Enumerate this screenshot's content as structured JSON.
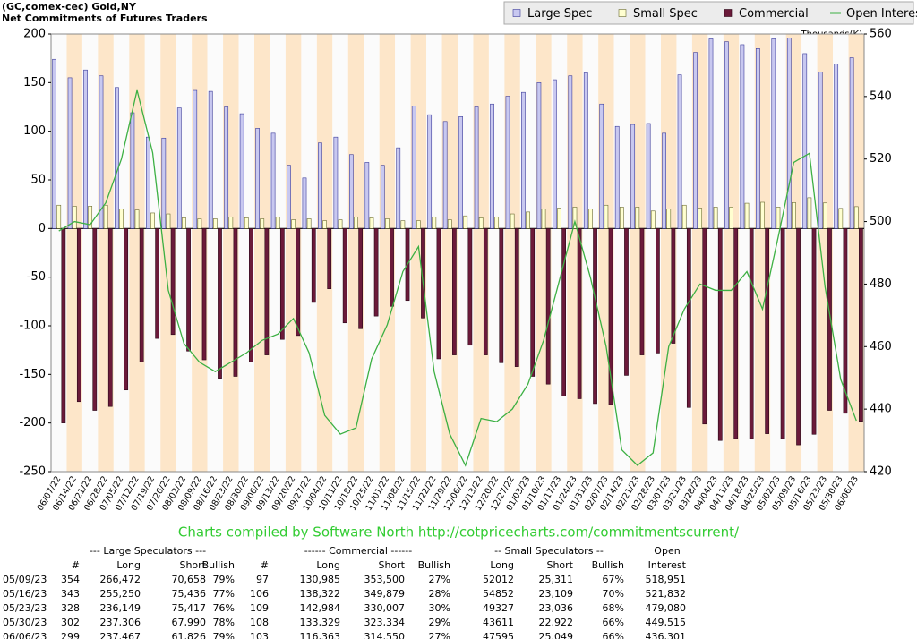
{
  "chart_data": {
    "type": "bar",
    "title": "(GC,comex-cec) Gold,NY",
    "subtitle": "Net Commitments of Futures Traders",
    "y2label": "Thousands(K)",
    "legend": "top-right",
    "grid": false,
    "categories": [
      "06/07/22",
      "06/14/22",
      "06/21/22",
      "06/28/22",
      "07/05/22",
      "07/12/22",
      "07/19/22",
      "07/26/22",
      "08/02/22",
      "08/09/22",
      "08/16/22",
      "08/23/22",
      "08/30/22",
      "09/06/22",
      "09/13/22",
      "09/20/22",
      "09/27/22",
      "10/04/22",
      "10/11/22",
      "10/18/22",
      "10/25/22",
      "11/01/22",
      "11/08/22",
      "11/15/22",
      "11/22/22",
      "11/29/22",
      "12/06/22",
      "12/13/22",
      "12/20/22",
      "12/27/22",
      "01/03/23",
      "01/10/23",
      "01/17/23",
      "01/24/23",
      "01/31/23",
      "02/07/23",
      "02/14/23",
      "02/21/23",
      "02/28/23",
      "03/07/23",
      "03/21/23",
      "03/28/23",
      "04/04/23",
      "04/11/23",
      "04/18/23",
      "04/25/23",
      "05/02/23",
      "05/09/23",
      "05/16/23",
      "05/23/23",
      "05/30/23",
      "06/06/23"
    ],
    "ylim": [
      -250,
      200
    ],
    "yticks": [
      -250,
      -200,
      -150,
      -100,
      -50,
      0,
      50,
      100,
      150,
      200
    ],
    "y2lim": [
      420,
      560
    ],
    "y2ticks": [
      420,
      440,
      460,
      480,
      500,
      520,
      540,
      560
    ],
    "series": [
      {
        "name": "Large Spec",
        "color": "#c8c8f0",
        "values": [
          174,
          155,
          163,
          157,
          145,
          119,
          94,
          93,
          124,
          142,
          141,
          125,
          118,
          103,
          98,
          65,
          52,
          88,
          94,
          76,
          68,
          65,
          83,
          126,
          117,
          110,
          115,
          125,
          128,
          136,
          140,
          150,
          153,
          157,
          160,
          128,
          105,
          107,
          108,
          98,
          158,
          181,
          195,
          192,
          189,
          185,
          195,
          195.8,
          179.8,
          160.7,
          169.3,
          175.6
        ]
      },
      {
        "name": "Small Spec",
        "color": "#ffffd0",
        "values": [
          24,
          23,
          23,
          24,
          20,
          19,
          16,
          15,
          11,
          10,
          10,
          12,
          11,
          10,
          12,
          9,
          10,
          8,
          9,
          12,
          11,
          10,
          8,
          8,
          12,
          9,
          13,
          11,
          12,
          15,
          17,
          20,
          21,
          22,
          20,
          24,
          22,
          22,
          18,
          20,
          24,
          21,
          22,
          22,
          26,
          27,
          22,
          26.7,
          31.7,
          26.3,
          20.7,
          22.5
        ]
      },
      {
        "name": "Commercial",
        "color": "#6b1a3a",
        "values": [
          -200,
          -178,
          -187,
          -183,
          -166,
          -137,
          -113,
          -109,
          -126,
          -135,
          -154,
          -152,
          -137,
          -130,
          -114,
          -110,
          -76,
          -62,
          -97,
          -103,
          -90,
          -80,
          -74,
          -92,
          -134,
          -130,
          -120,
          -130,
          -138,
          -142,
          -152,
          -160,
          -172,
          -175,
          -180,
          -181,
          -151,
          -130,
          -128,
          -118,
          -184,
          -201,
          -218,
          -216,
          -216,
          -211,
          -216,
          -222.5,
          -211.6,
          -187,
          -190,
          -198.2
        ]
      },
      {
        "name": "Open Interest",
        "color": "#3cb043",
        "type": "line",
        "axis": "y2",
        "values": [
          497,
          500,
          499,
          506,
          520,
          542,
          522,
          478,
          461,
          455,
          452,
          455,
          458,
          462,
          464,
          469,
          458,
          438,
          432,
          434,
          456,
          467,
          484,
          492,
          452,
          432,
          422,
          437,
          436,
          440,
          448,
          462,
          481,
          500,
          482,
          460,
          427,
          422,
          426,
          460,
          472,
          480,
          478,
          478,
          484,
          472,
          495,
          518.951,
          521.832,
          479.08,
          449.515,
          436.301
        ]
      }
    ]
  },
  "credit": "Charts compiled by Software North  http://cotpricecharts.com/commitmentscurrent/",
  "table": {
    "group_headers": [
      "--- Large Speculators ---",
      "------ Commercial ------",
      "-- Small Speculators --",
      "Open"
    ],
    "columns": [
      "#",
      "Long",
      "Short",
      "Bullish",
      "#",
      "Long",
      "Short",
      "Bullish",
      "Long",
      "Short",
      "Bullish",
      "Interest"
    ],
    "rows": [
      [
        "05/09/23",
        "354",
        "266,472",
        "70,658",
        "79%",
        "97",
        "130,985",
        "353,500",
        "27%",
        "52012",
        "25,311",
        "67%",
        "518,951"
      ],
      [
        "05/16/23",
        "343",
        "255,250",
        "75,436",
        "77%",
        "106",
        "138,322",
        "349,879",
        "28%",
        "54852",
        "23,109",
        "70%",
        "521,832"
      ],
      [
        "05/23/23",
        "328",
        "236,149",
        "75,417",
        "76%",
        "109",
        "142,984",
        "330,007",
        "30%",
        "49327",
        "23,036",
        "68%",
        "479,080"
      ],
      [
        "05/30/23",
        "302",
        "237,306",
        "67,990",
        "78%",
        "108",
        "133,329",
        "323,334",
        "29%",
        "43611",
        "22,922",
        "66%",
        "449,515"
      ],
      [
        "06/06/23",
        "299",
        "237,467",
        "61,826",
        "79%",
        "103",
        "116,363",
        "314,550",
        "27%",
        "47595",
        "25,049",
        "66%",
        "436,301"
      ]
    ]
  }
}
